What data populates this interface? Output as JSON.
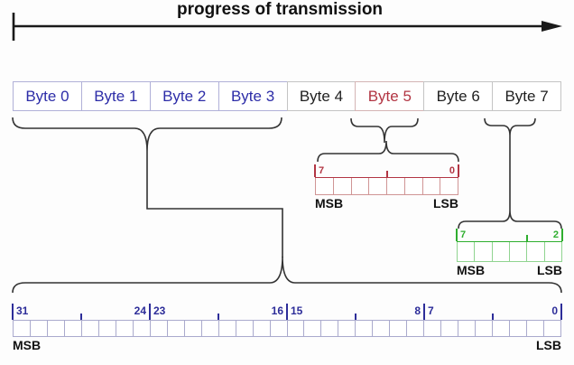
{
  "title": "progress of transmission",
  "byte_row": {
    "items": [
      {
        "label": "Byte 0",
        "style": "blue"
      },
      {
        "label": "Byte 1",
        "style": "blue"
      },
      {
        "label": "Byte 2",
        "style": "blue"
      },
      {
        "label": "Byte 3",
        "style": "blue"
      },
      {
        "label": "Byte 4",
        "style": "plain"
      },
      {
        "label": "Byte 5",
        "style": "red"
      },
      {
        "label": "Byte 6",
        "style": "plain"
      },
      {
        "label": "Byte 7",
        "style": "plain"
      }
    ]
  },
  "registers": {
    "byte5": {
      "style": "red",
      "bit_count": 8,
      "ticks": [
        {
          "pos": 0,
          "size": "tall",
          "label_right": "7"
        },
        {
          "pos": 4,
          "size": "small"
        },
        {
          "pos": 8,
          "size": "tall",
          "label_left": "0"
        }
      ],
      "msb_label": "MSB",
      "lsb_label": "LSB"
    },
    "byte7": {
      "style": "green",
      "bit_count": 6,
      "ticks": [
        {
          "pos": 0,
          "size": "tall",
          "label_right": "7"
        },
        {
          "pos": 4,
          "size": "small"
        },
        {
          "pos": 6,
          "size": "tall",
          "label_left": "2"
        }
      ],
      "msb_label": "MSB",
      "lsb_label": "LSB"
    },
    "word": {
      "style": "blue",
      "bit_count": 32,
      "ticks": [
        {
          "pos": 0,
          "size": "tall",
          "label_right": "31"
        },
        {
          "pos": 4,
          "size": "small"
        },
        {
          "pos": 8,
          "size": "tall",
          "label_left": "24",
          "label_right": "23"
        },
        {
          "pos": 12,
          "size": "small"
        },
        {
          "pos": 16,
          "size": "tall",
          "label_left": "16",
          "label_right": "15"
        },
        {
          "pos": 20,
          "size": "small"
        },
        {
          "pos": 24,
          "size": "tall",
          "label_left": "8",
          "label_right": "7"
        },
        {
          "pos": 28,
          "size": "small"
        },
        {
          "pos": 32,
          "size": "tall",
          "label_left": "0"
        }
      ],
      "msb_label": "MSB",
      "lsb_label": "LSB"
    }
  },
  "colors": {
    "arrow": "#1a1a1a",
    "brace": "#333333",
    "blue_text": "#2d2da8",
    "blue_byte_border": "#b0b0d8",
    "plain_byte_border": "#c4c4c4",
    "red_byte_border": "#d4b4b4",
    "red_ruler": "#b23543",
    "red_cell_border": "#d09595",
    "green_ruler": "#2fae2f",
    "green_cell_border": "#90d490",
    "word_tick": "#2d2d99",
    "word_cell_border": "#aaaacd",
    "endian_text": "#111111"
  }
}
